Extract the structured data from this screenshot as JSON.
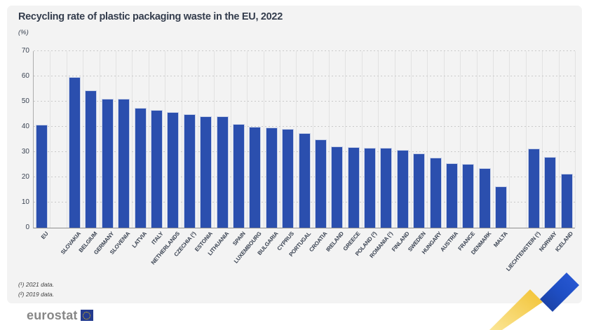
{
  "title": "Recycling rate of plastic packaging waste in the EU, 2022",
  "unit_label": "(%)",
  "footnotes": [
    "(¹) 2021 data.",
    "(²) 2019 data."
  ],
  "logo": {
    "text": "eurostat"
  },
  "colors": {
    "bar": "#2b4fae",
    "panel_background": "#f3f3f3",
    "title_text": "#343d4d",
    "ribbon_yellow": "#f2c233",
    "ribbon_blue": "#1e4ec4",
    "flag_blue": "#253c8f",
    "flag_stars": "#ffcf00"
  },
  "chart_data": {
    "type": "bar",
    "title": "Recycling rate of plastic packaging waste in the EU, 2022",
    "ylabel": "(%)",
    "xlabel": "",
    "ylim": [
      0,
      70
    ],
    "yticks": [
      0,
      10,
      20,
      30,
      40,
      50,
      60,
      70
    ],
    "grid": "horizontal dotted lines + vertical column separators",
    "legend_position": "none",
    "layout_note": "one empty column after EU aggregate and after MALTA (before EFTA countries)",
    "items": [
      {
        "label": "EU",
        "value": 40.7,
        "group": "eu-aggregate"
      },
      {
        "label": "SLOVAKIA",
        "value": 59.7,
        "group": "member-states"
      },
      {
        "label": "BELGIUM",
        "value": 54.4,
        "group": "member-states"
      },
      {
        "label": "GERMANY",
        "value": 51.2,
        "group": "member-states"
      },
      {
        "label": "SLOVENIA",
        "value": 51.0,
        "group": "member-states"
      },
      {
        "label": "LATVIA",
        "value": 47.5,
        "group": "member-states"
      },
      {
        "label": "ITALY",
        "value": 46.6,
        "group": "member-states"
      },
      {
        "label": "NETHERLANDS",
        "value": 45.7,
        "group": "member-states"
      },
      {
        "label": "CZECHIA (¹)",
        "value": 45.1,
        "group": "member-states"
      },
      {
        "label": "ESTONIA",
        "value": 44.3,
        "group": "member-states"
      },
      {
        "label": "LITHUANIA",
        "value": 44.1,
        "group": "member-states"
      },
      {
        "label": "SPAIN",
        "value": 41.1,
        "group": "member-states"
      },
      {
        "label": "LUXEMBOURG",
        "value": 39.9,
        "group": "member-states"
      },
      {
        "label": "BULGARIA",
        "value": 39.6,
        "group": "member-states"
      },
      {
        "label": "CYPRUS",
        "value": 39.2,
        "group": "member-states"
      },
      {
        "label": "PORTUGAL",
        "value": 37.4,
        "group": "member-states"
      },
      {
        "label": "CROATIA",
        "value": 35.0,
        "group": "member-states"
      },
      {
        "label": "IRELAND",
        "value": 32.3,
        "group": "member-states"
      },
      {
        "label": "GREECE",
        "value": 32.0,
        "group": "member-states"
      },
      {
        "label": "POLAND (²)",
        "value": 31.8,
        "group": "member-states"
      },
      {
        "label": "ROMANIA (¹)",
        "value": 31.6,
        "group": "member-states"
      },
      {
        "label": "FINLAND",
        "value": 30.8,
        "group": "member-states"
      },
      {
        "label": "SWEDEN",
        "value": 29.4,
        "group": "member-states"
      },
      {
        "label": "HUNGARY",
        "value": 27.7,
        "group": "member-states"
      },
      {
        "label": "AUSTRIA",
        "value": 25.6,
        "group": "member-states"
      },
      {
        "label": "FRANCE",
        "value": 25.3,
        "group": "member-states"
      },
      {
        "label": "DENMARK",
        "value": 23.6,
        "group": "member-states"
      },
      {
        "label": "MALTA",
        "value": 16.5,
        "group": "member-states"
      },
      {
        "label": "LIECHTENSTEIN (¹)",
        "value": 31.5,
        "group": "efta"
      },
      {
        "label": "NORWAY",
        "value": 28.1,
        "group": "efta"
      },
      {
        "label": "ICELAND",
        "value": 21.5,
        "group": "efta"
      }
    ]
  }
}
